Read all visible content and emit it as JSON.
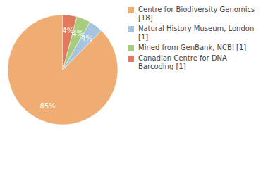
{
  "chart_data": {
    "type": "pie",
    "categories": [
      "Centre for Biodiversity Genomics [18]",
      "Natural History Museum, London [1]",
      "Mined from GenBank, NCBI [1]",
      "Canadian Centre for DNA Barcoding [1]"
    ],
    "values": [
      85,
      4,
      4,
      4
    ],
    "value_labels": [
      "85%",
      "4%",
      "4%",
      "4%"
    ],
    "data_labels": true,
    "colors": [
      "#f0ad73",
      "#a6c3e0",
      "#a8cc7e",
      "#e07a5f"
    ],
    "legend": "right"
  }
}
